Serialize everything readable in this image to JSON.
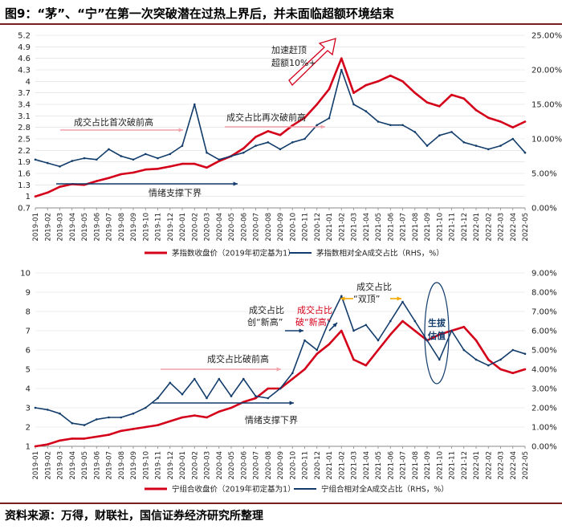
{
  "figure": {
    "title": "图9：“茅”、“宁”在第一次突破潜在过热上界后，并未面临超额环境结束",
    "source": "资料来源：万得，财联社，国信证券经济研究所整理"
  },
  "colors": {
    "red": "#d4001a",
    "navy": "#123c6b",
    "pink": "#f2a3ac",
    "orange": "#f2a900",
    "grid": "#d9d9d9"
  },
  "chart_data": [
    {
      "type": "line",
      "name": "maotai",
      "x_labels": [
        "2019-01",
        "2019-02",
        "2019-03",
        "2019-04",
        "2019-05",
        "2019-06",
        "2019-07",
        "2019-08",
        "2019-09",
        "2019-10",
        "2019-11",
        "2019-12",
        "2020-01",
        "2020-02",
        "2020-03",
        "2020-04",
        "2020-05",
        "2020-06",
        "2020-07",
        "2020-08",
        "2020-09",
        "2020-10",
        "2020-11",
        "2020-12",
        "2021-01",
        "2021-02",
        "2021-03",
        "2021-04",
        "2021-05",
        "2021-06",
        "2021-07",
        "2021-08",
        "2021-09",
        "2021-10",
        "2021-11",
        "2021-12",
        "2022-01",
        "2022-02",
        "2022-03",
        "2022-04",
        "2022-05"
      ],
      "left_axis": {
        "ylim": [
          0.7,
          5.2
        ],
        "ticks": [
          "0.7",
          "1",
          "1.3",
          "1.6",
          "1.9",
          "2.2",
          "2.5",
          "2.8",
          "3.1",
          "3.4",
          "3.7",
          "4",
          "4.3",
          "4.6",
          "4.9",
          "5.2"
        ]
      },
      "right_axis": {
        "ylim": [
          0,
          25
        ],
        "ticks": [
          "0.00%",
          "5.00%",
          "10.00%",
          "15.00%",
          "20.00%",
          "25.00%"
        ]
      },
      "series": [
        {
          "name": "茅指数收盘价（2019年初定基为1）",
          "axis": "left",
          "color": "red",
          "values": [
            1.0,
            1.1,
            1.25,
            1.32,
            1.3,
            1.4,
            1.48,
            1.58,
            1.62,
            1.7,
            1.72,
            1.78,
            1.85,
            1.85,
            1.75,
            1.92,
            2.05,
            2.25,
            2.55,
            2.7,
            2.6,
            2.85,
            3.05,
            3.4,
            3.8,
            4.6,
            3.7,
            3.9,
            4.0,
            4.15,
            4.0,
            3.7,
            3.45,
            3.35,
            3.65,
            3.55,
            3.25,
            3.05,
            2.95,
            2.8,
            2.95
          ]
        },
        {
          "name": "茅指数相对全A成交占比（RHS，%）",
          "axis": "right",
          "color": "navy",
          "values": [
            7.0,
            6.5,
            6.0,
            6.8,
            7.2,
            7.0,
            8.5,
            7.5,
            7.0,
            7.8,
            7.2,
            7.8,
            9.0,
            15.0,
            8.0,
            7.0,
            7.5,
            8.0,
            9.0,
            9.5,
            8.5,
            9.5,
            10.0,
            12.0,
            13.0,
            20.0,
            15.0,
            14.0,
            12.5,
            12.0,
            12.0,
            11.0,
            9.0,
            10.5,
            11.0,
            9.5,
            9.0,
            8.5,
            9.0,
            10.0,
            8.0
          ]
        }
      ],
      "annotations": {
        "first_break": "成交占比首次破前高",
        "second_break": "成交占比再次破前高",
        "support": "情绪支撑下界",
        "accel_line1": "加速赶顶",
        "accel_line2": "超额10%+"
      }
    },
    {
      "type": "line",
      "name": "ningde",
      "x_labels": [
        "2019-01",
        "2019-02",
        "2019-03",
        "2019-04",
        "2019-05",
        "2019-06",
        "2019-07",
        "2019-08",
        "2019-09",
        "2019-10",
        "2019-11",
        "2019-12",
        "2020-01",
        "2020-02",
        "2020-03",
        "2020-04",
        "2020-05",
        "2020-06",
        "2020-07",
        "2020-08",
        "2020-09",
        "2020-10",
        "2020-11",
        "2020-12",
        "2021-01",
        "2021-02",
        "2021-03",
        "2021-04",
        "2021-05",
        "2021-06",
        "2021-07",
        "2021-08",
        "2021-09",
        "2021-10",
        "2021-11",
        "2021-12",
        "2022-01",
        "2022-02",
        "2022-03",
        "2022-04",
        "2022-05"
      ],
      "left_axis": {
        "ylim": [
          1,
          10
        ],
        "ticks": [
          "1",
          "2",
          "3",
          "4",
          "5",
          "6",
          "7",
          "8",
          "9",
          "10"
        ]
      },
      "right_axis": {
        "ylim": [
          0,
          9
        ],
        "ticks": [
          "0.00%",
          "1.00%",
          "2.00%",
          "3.00%",
          "4.00%",
          "5.00%",
          "6.00%",
          "7.00%",
          "8.00%",
          "9.00%"
        ]
      },
      "series": [
        {
          "name": "宁组合收盘价（2019年初定基为1）",
          "axis": "left",
          "color": "red",
          "values": [
            1.0,
            1.1,
            1.3,
            1.4,
            1.4,
            1.5,
            1.6,
            1.8,
            1.9,
            2.0,
            2.1,
            2.3,
            2.5,
            2.6,
            2.5,
            2.8,
            3.0,
            3.3,
            3.5,
            4.0,
            4.0,
            4.5,
            5.0,
            5.8,
            6.3,
            7.0,
            5.5,
            5.2,
            6.0,
            6.8,
            7.5,
            7.0,
            6.5,
            6.8,
            7.0,
            7.2,
            6.5,
            5.5,
            5.0,
            4.8,
            5.0
          ]
        },
        {
          "name": "宁组合相对全A成交占比（RHS，%）",
          "axis": "right",
          "color": "navy",
          "values": [
            2.0,
            1.9,
            1.7,
            1.2,
            1.1,
            1.4,
            1.5,
            1.5,
            1.7,
            2.0,
            2.5,
            3.3,
            2.7,
            3.5,
            2.5,
            3.5,
            2.6,
            3.5,
            2.6,
            2.5,
            3.0,
            3.8,
            5.5,
            5.0,
            6.5,
            7.8,
            6.0,
            6.3,
            5.5,
            6.5,
            7.5,
            6.5,
            5.5,
            4.5,
            6.0,
            5.0,
            4.5,
            4.2,
            4.5,
            5.0,
            4.8
          ]
        }
      ],
      "annotations": {
        "double_top_line1": "成交占比",
        "double_top_line2": "“双顶”",
        "new_high_line1": "成交占比",
        "new_high_line2": "创“新高”",
        "break_high_line1": "成交占比",
        "break_high_line2": "破“新高”",
        "break_prev": "成交占比破前高",
        "support": "情绪支撑下界",
        "bull_line1": "生拔",
        "bull_line2": "估值"
      }
    }
  ]
}
